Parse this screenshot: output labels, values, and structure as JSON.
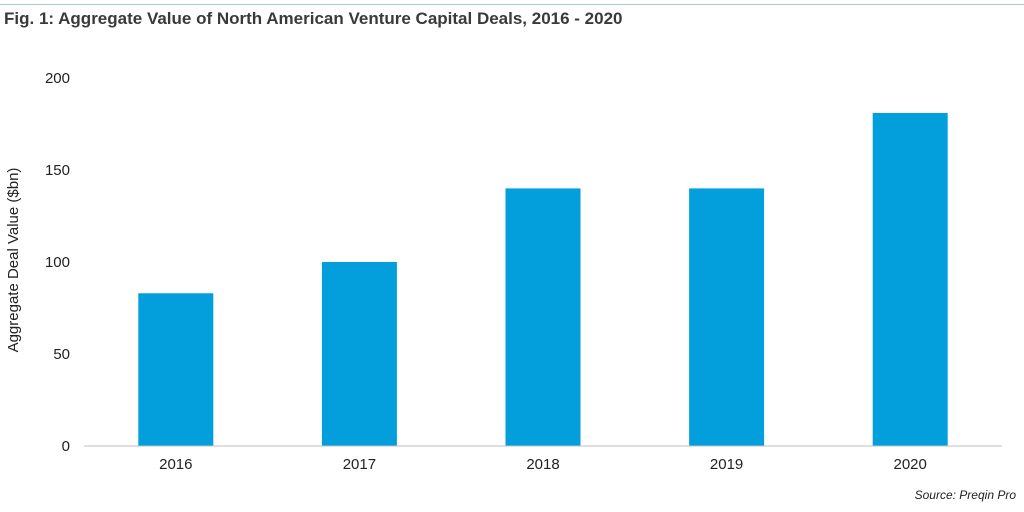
{
  "title": "Fig. 1: Aggregate Value of North American Venture Capital Deals, 2016 - 2020",
  "source": "Source: Preqin Pro",
  "colors": {
    "bar": "#039fdd",
    "axis": "#bfbfbf",
    "rule": "#a9c6e0"
  },
  "chart_data": {
    "type": "bar",
    "title": "Fig. 1: Aggregate Value of North American Venture Capital Deals, 2016 - 2020",
    "categories": [
      "2016",
      "2017",
      "2018",
      "2019",
      "2020"
    ],
    "values": [
      83,
      100,
      140,
      140,
      181
    ],
    "xlabel": "",
    "ylabel": "Aggregate Deal Value ($bn)",
    "ylim": [
      0,
      200
    ],
    "yticks": [
      0,
      50,
      100,
      150,
      200
    ],
    "grid": false,
    "legend": "none"
  }
}
